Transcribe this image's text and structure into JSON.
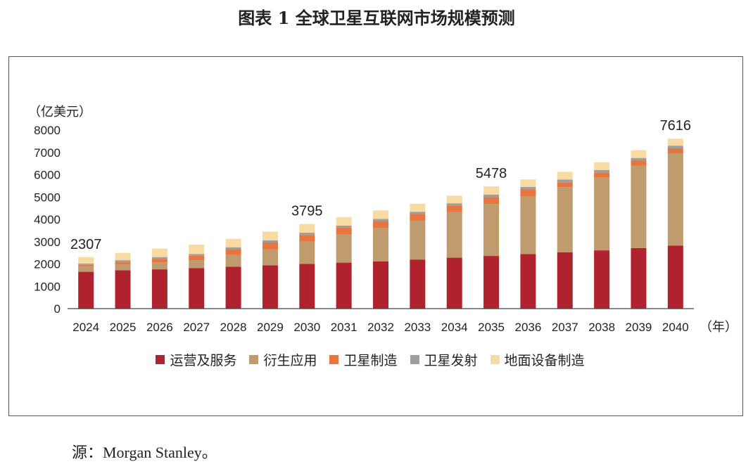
{
  "figure_title": "图表 1  全球卫星互联网市场规模预测",
  "source_text": "源：Morgan Stanley。",
  "chart_data": {
    "type": "bar",
    "stacked": true,
    "title": "",
    "ylabel": "（亿美元）",
    "xlabel": "（年）",
    "ylim": [
      0,
      8000
    ],
    "yticks": [
      0,
      1000,
      2000,
      3000,
      4000,
      5000,
      6000,
      7000,
      8000
    ],
    "categories": [
      "2024",
      "2025",
      "2026",
      "2027",
      "2028",
      "2029",
      "2030",
      "2031",
      "2032",
      "2033",
      "2034",
      "2035",
      "2036",
      "2037",
      "2038",
      "2039",
      "2040"
    ],
    "series": [
      {
        "name": "运营及服务",
        "color": "#B0232E",
        "values": [
          1650,
          1720,
          1760,
          1820,
          1880,
          1940,
          2000,
          2060,
          2120,
          2200,
          2280,
          2360,
          2440,
          2520,
          2610,
          2710,
          2820
        ]
      },
      {
        "name": "衍生应用",
        "color": "#BF9B6E",
        "values": [
          230,
          280,
          310,
          350,
          520,
          720,
          1000,
          1260,
          1500,
          1740,
          2040,
          2330,
          2600,
          2920,
          3260,
          3700,
          4140
        ]
      },
      {
        "name": "卫星制造",
        "color": "#E8743E",
        "values": [
          80,
          100,
          160,
          200,
          260,
          300,
          300,
          300,
          300,
          300,
          300,
          300,
          300,
          220,
          220,
          220,
          220
        ]
      },
      {
        "name": "卫星发射",
        "color": "#9E9E9E",
        "values": [
          60,
          70,
          80,
          80,
          90,
          100,
          100,
          100,
          100,
          100,
          100,
          120,
          110,
          120,
          120,
          120,
          120
        ]
      },
      {
        "name": "地面设备制造",
        "color": "#F7DBA3",
        "values": [
          287,
          330,
          380,
          420,
          380,
          390,
          395,
          380,
          380,
          360,
          340,
          368,
          340,
          350,
          350,
          350,
          316
        ]
      }
    ],
    "data_labels": [
      {
        "category": "2024",
        "text": "2307"
      },
      {
        "category": "2030",
        "text": "3795"
      },
      {
        "category": "2035",
        "text": "5478"
      },
      {
        "category": "2040",
        "text": "7616"
      }
    ],
    "legend": "bottom-center"
  }
}
